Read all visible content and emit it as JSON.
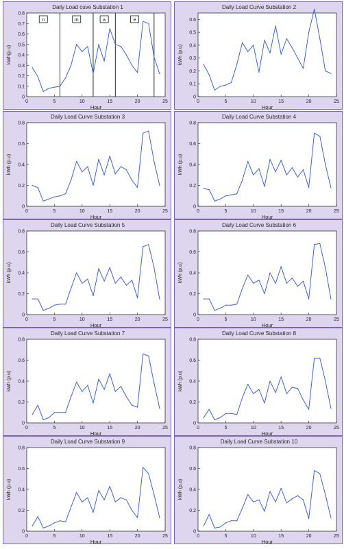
{
  "chart_data": [
    {
      "type": "line",
      "title": "Daily Load cuve Substation 1",
      "xlabel": "Hour",
      "ylabel": "kWh(p.u)",
      "xlim": [
        0,
        25
      ],
      "ylim": [
        0,
        0.8
      ],
      "xticks": [
        0,
        5,
        10,
        15,
        20,
        25
      ],
      "yticks": [
        0,
        0.1,
        0.2,
        0.3,
        0.4,
        0.5,
        0.6,
        0.7,
        0.8
      ],
      "segment_markers": [
        6,
        12,
        16,
        23
      ],
      "segment_labels": [
        "n",
        "m",
        "a",
        "e"
      ],
      "x": [
        1,
        2,
        3,
        4,
        5,
        6,
        7,
        8,
        9,
        10,
        11,
        12,
        13,
        14,
        15,
        16,
        17,
        18,
        19,
        20,
        21,
        22,
        23,
        24
      ],
      "values": [
        0.28,
        0.19,
        0.05,
        0.08,
        0.09,
        0.1,
        0.18,
        0.3,
        0.5,
        0.43,
        0.48,
        0.22,
        0.5,
        0.34,
        0.65,
        0.5,
        0.48,
        0.4,
        0.3,
        0.23,
        0.72,
        0.7,
        0.38,
        0.22
      ]
    },
    {
      "type": "line",
      "title": "Daily Load Curve Substation 2",
      "xlabel": "Hour",
      "ylabel": "kWh (p.u)",
      "xlim": [
        0,
        25
      ],
      "ylim": [
        0,
        0.65
      ],
      "xticks": [
        0,
        5,
        10,
        15,
        20,
        25
      ],
      "yticks": [
        0,
        0.1,
        0.2,
        0.3,
        0.4,
        0.5,
        0.6
      ],
      "x": [
        1,
        2,
        3,
        4,
        5,
        6,
        7,
        8,
        9,
        10,
        11,
        12,
        13,
        14,
        15,
        16,
        17,
        18,
        19,
        20,
        21,
        22,
        23,
        24
      ],
      "values": [
        0.25,
        0.17,
        0.05,
        0.08,
        0.09,
        0.11,
        0.25,
        0.42,
        0.35,
        0.4,
        0.19,
        0.44,
        0.34,
        0.55,
        0.33,
        0.45,
        0.38,
        0.3,
        0.22,
        0.5,
        0.68,
        0.45,
        0.2,
        0.18
      ]
    },
    {
      "type": "line",
      "title": "Daily Load Curve Substation 3",
      "xlabel": "Hour",
      "ylabel": "kWh (p.u)",
      "xlim": [
        0,
        25
      ],
      "ylim": [
        0,
        0.8
      ],
      "xticks": [
        0,
        5,
        10,
        15,
        20,
        25
      ],
      "yticks": [
        0,
        0.2,
        0.4,
        0.6,
        0.8
      ],
      "x": [
        1,
        2,
        3,
        4,
        5,
        6,
        7,
        8,
        9,
        10,
        11,
        12,
        13,
        14,
        15,
        16,
        17,
        18,
        19,
        20,
        21,
        22,
        23,
        24
      ],
      "values": [
        0.2,
        0.18,
        0.05,
        0.07,
        0.09,
        0.1,
        0.12,
        0.25,
        0.43,
        0.33,
        0.38,
        0.2,
        0.45,
        0.3,
        0.48,
        0.31,
        0.38,
        0.35,
        0.25,
        0.18,
        0.7,
        0.72,
        0.43,
        0.2
      ]
    },
    {
      "type": "line",
      "title": "Daily Load Curve Substation 4",
      "xlabel": "Hour",
      "ylabel": "kWh (p.u)",
      "xlim": [
        0,
        25
      ],
      "ylim": [
        0,
        0.8
      ],
      "xticks": [
        0,
        5,
        10,
        15,
        20,
        25
      ],
      "yticks": [
        0,
        0.2,
        0.4,
        0.6,
        0.8
      ],
      "x": [
        1,
        2,
        3,
        4,
        5,
        6,
        7,
        8,
        9,
        10,
        11,
        12,
        13,
        14,
        15,
        16,
        17,
        18,
        19,
        20,
        21,
        22,
        23,
        24
      ],
      "values": [
        0.17,
        0.16,
        0.05,
        0.07,
        0.1,
        0.11,
        0.12,
        0.25,
        0.43,
        0.3,
        0.36,
        0.19,
        0.45,
        0.33,
        0.44,
        0.3,
        0.37,
        0.28,
        0.35,
        0.18,
        0.7,
        0.67,
        0.4,
        0.18
      ]
    },
    {
      "type": "line",
      "title": "Daily Load Curve Substation 5",
      "xlabel": "Hour",
      "ylabel": "kWh (p.u)",
      "xlim": [
        0,
        25
      ],
      "ylim": [
        0,
        0.8
      ],
      "xticks": [
        0,
        5,
        10,
        15,
        20,
        25
      ],
      "yticks": [
        0,
        0.2,
        0.4,
        0.6,
        0.8
      ],
      "x": [
        1,
        2,
        3,
        4,
        5,
        6,
        7,
        8,
        9,
        10,
        11,
        12,
        13,
        14,
        15,
        16,
        17,
        18,
        19,
        20,
        21,
        22,
        23,
        24
      ],
      "values": [
        0.15,
        0.15,
        0.04,
        0.06,
        0.09,
        0.1,
        0.1,
        0.25,
        0.4,
        0.3,
        0.34,
        0.18,
        0.44,
        0.32,
        0.45,
        0.3,
        0.36,
        0.28,
        0.33,
        0.16,
        0.65,
        0.67,
        0.45,
        0.15
      ]
    },
    {
      "type": "line",
      "title": "Daily Load Curve Substation 6",
      "xlabel": "Hour",
      "ylabel": "kWh (p.u)",
      "xlim": [
        0,
        25
      ],
      "ylim": [
        0,
        0.8
      ],
      "xticks": [
        0,
        5,
        10,
        15,
        20,
        25
      ],
      "yticks": [
        0,
        0.2,
        0.4,
        0.6,
        0.8
      ],
      "x": [
        1,
        2,
        3,
        4,
        5,
        6,
        7,
        8,
        9,
        10,
        11,
        12,
        13,
        14,
        15,
        16,
        17,
        18,
        19,
        20,
        21,
        22,
        23,
        24
      ],
      "values": [
        0.15,
        0.15,
        0.04,
        0.06,
        0.09,
        0.09,
        0.1,
        0.25,
        0.38,
        0.3,
        0.33,
        0.2,
        0.4,
        0.3,
        0.46,
        0.3,
        0.35,
        0.27,
        0.32,
        0.15,
        0.67,
        0.68,
        0.45,
        0.15
      ]
    },
    {
      "type": "line",
      "title": "Daily Load Curve Substation 7",
      "xlabel": "Hour",
      "ylabel": "kWh (p.u)",
      "xlim": [
        0,
        25
      ],
      "ylim": [
        0,
        0.8
      ],
      "xticks": [
        0,
        5,
        10,
        15,
        20,
        25
      ],
      "yticks": [
        0,
        0.2,
        0.4,
        0.6,
        0.8
      ],
      "x": [
        1,
        2,
        3,
        4,
        5,
        6,
        7,
        8,
        9,
        10,
        11,
        12,
        13,
        14,
        15,
        16,
        17,
        18,
        19,
        20,
        21,
        22,
        23,
        24
      ],
      "values": [
        0.08,
        0.17,
        0.03,
        0.05,
        0.1,
        0.1,
        0.1,
        0.25,
        0.39,
        0.3,
        0.36,
        0.19,
        0.42,
        0.32,
        0.47,
        0.3,
        0.35,
        0.25,
        0.17,
        0.15,
        0.66,
        0.64,
        0.38,
        0.14
      ]
    },
    {
      "type": "line",
      "title": "Daily Load Curve Substation 8",
      "xlabel": "Hour",
      "ylabel": "kWh (p.u)",
      "xlim": [
        0,
        25
      ],
      "ylim": [
        0,
        0.8
      ],
      "xticks": [
        0,
        5,
        10,
        15,
        20,
        25
      ],
      "yticks": [
        0,
        0.2,
        0.4,
        0.6,
        0.8
      ],
      "x": [
        1,
        2,
        3,
        4,
        5,
        6,
        7,
        8,
        9,
        10,
        11,
        12,
        13,
        14,
        15,
        16,
        17,
        18,
        19,
        20,
        21,
        22,
        23,
        24
      ],
      "values": [
        0.05,
        0.13,
        0.03,
        0.05,
        0.09,
        0.09,
        0.08,
        0.24,
        0.37,
        0.28,
        0.32,
        0.19,
        0.4,
        0.29,
        0.44,
        0.28,
        0.34,
        0.33,
        0.22,
        0.13,
        0.62,
        0.62,
        0.4,
        0.14
      ]
    },
    {
      "type": "line",
      "title": "Daily Load Curve Substation 9",
      "xlabel": "Hour",
      "ylabel": "kWh (p.u)",
      "xlim": [
        0,
        25
      ],
      "ylim": [
        0,
        0.8
      ],
      "xticks": [
        0,
        5,
        10,
        15,
        20,
        25
      ],
      "yticks": [
        0,
        0.2,
        0.4,
        0.6,
        0.8
      ],
      "x": [
        1,
        2,
        3,
        4,
        5,
        6,
        7,
        8,
        9,
        10,
        11,
        12,
        13,
        14,
        15,
        16,
        17,
        18,
        19,
        20,
        21,
        22,
        23,
        24
      ],
      "values": [
        0.05,
        0.14,
        0.03,
        0.05,
        0.08,
        0.1,
        0.09,
        0.23,
        0.37,
        0.28,
        0.32,
        0.18,
        0.39,
        0.3,
        0.43,
        0.28,
        0.32,
        0.3,
        0.2,
        0.13,
        0.61,
        0.55,
        0.35,
        0.13
      ]
    },
    {
      "type": "line",
      "title": "Daily Load Curve Substation 10",
      "xlabel": "Hour",
      "ylabel": "kWh (p.u)",
      "xlim": [
        0,
        25
      ],
      "ylim": [
        0,
        0.8
      ],
      "xticks": [
        0,
        5,
        10,
        15,
        20,
        25
      ],
      "yticks": [
        0,
        0.2,
        0.4,
        0.6,
        0.8
      ],
      "x": [
        1,
        2,
        3,
        4,
        5,
        6,
        7,
        8,
        9,
        10,
        11,
        12,
        13,
        14,
        15,
        16,
        17,
        18,
        19,
        20,
        21,
        22,
        23,
        24
      ],
      "values": [
        0.05,
        0.16,
        0.03,
        0.04,
        0.08,
        0.1,
        0.1,
        0.22,
        0.35,
        0.28,
        0.3,
        0.19,
        0.38,
        0.28,
        0.41,
        0.27,
        0.31,
        0.34,
        0.3,
        0.12,
        0.58,
        0.55,
        0.35,
        0.13
      ]
    }
  ],
  "style": {
    "line_color": "#3b63d8",
    "axis_color": "#333333",
    "panel_bg": "#ddd6ee",
    "plot_bg": "#ffffff",
    "border_color": "#7c64b8"
  }
}
